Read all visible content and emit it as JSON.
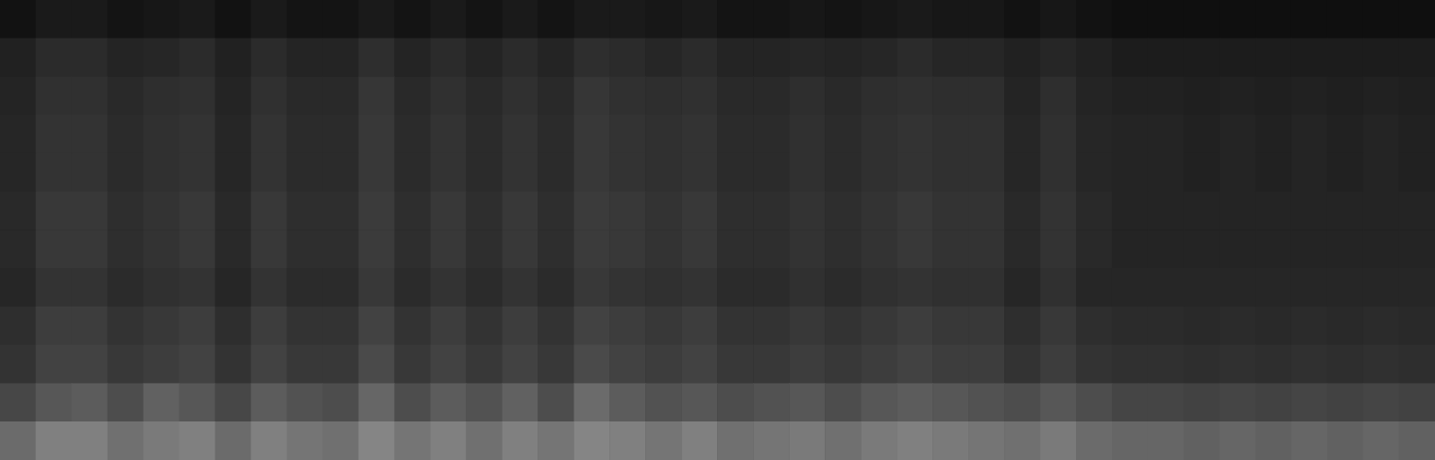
{
  "chart_data": {
    "type": "heatmap",
    "tick_labels": false,
    "grid": false,
    "color_range": [
      0,
      1
    ],
    "cells": [
      [
        0.07,
        0.1,
        0.1,
        0.08,
        0.09,
        0.1,
        0.07,
        0.1,
        0.08,
        0.08,
        0.1,
        0.08,
        0.1,
        0.08,
        0.1,
        0.08,
        0.1,
        0.1,
        0.09,
        0.1,
        0.08,
        0.08,
        0.09,
        0.08,
        0.09,
        0.1,
        0.09,
        0.09,
        0.07,
        0.09,
        0.07,
        0.06,
        0.06,
        0.06,
        0.06,
        0.06,
        0.06,
        0.06,
        0.06,
        0.06
      ],
      [
        0.13,
        0.17,
        0.17,
        0.14,
        0.15,
        0.17,
        0.13,
        0.17,
        0.14,
        0.14,
        0.18,
        0.14,
        0.17,
        0.14,
        0.17,
        0.14,
        0.18,
        0.17,
        0.15,
        0.17,
        0.14,
        0.14,
        0.15,
        0.14,
        0.15,
        0.17,
        0.15,
        0.15,
        0.13,
        0.15,
        0.13,
        0.11,
        0.11,
        0.11,
        0.11,
        0.11,
        0.11,
        0.11,
        0.11,
        0.11
      ],
      [
        0.14,
        0.19,
        0.19,
        0.16,
        0.18,
        0.19,
        0.14,
        0.19,
        0.16,
        0.16,
        0.21,
        0.16,
        0.19,
        0.16,
        0.19,
        0.16,
        0.21,
        0.19,
        0.18,
        0.19,
        0.16,
        0.16,
        0.18,
        0.16,
        0.18,
        0.19,
        0.18,
        0.18,
        0.14,
        0.18,
        0.14,
        0.13,
        0.13,
        0.12,
        0.13,
        0.12,
        0.13,
        0.12,
        0.13,
        0.12
      ],
      [
        0.15,
        0.2,
        0.2,
        0.17,
        0.19,
        0.2,
        0.15,
        0.2,
        0.17,
        0.17,
        0.22,
        0.17,
        0.2,
        0.17,
        0.2,
        0.17,
        0.22,
        0.2,
        0.19,
        0.2,
        0.17,
        0.17,
        0.19,
        0.17,
        0.19,
        0.2,
        0.19,
        0.19,
        0.15,
        0.19,
        0.15,
        0.14,
        0.14,
        0.13,
        0.14,
        0.13,
        0.14,
        0.13,
        0.14,
        0.13
      ],
      [
        0.15,
        0.2,
        0.2,
        0.17,
        0.19,
        0.2,
        0.15,
        0.2,
        0.17,
        0.17,
        0.22,
        0.17,
        0.2,
        0.17,
        0.2,
        0.17,
        0.22,
        0.2,
        0.19,
        0.2,
        0.17,
        0.17,
        0.19,
        0.17,
        0.19,
        0.2,
        0.19,
        0.19,
        0.15,
        0.19,
        0.15,
        0.14,
        0.14,
        0.13,
        0.14,
        0.13,
        0.14,
        0.13,
        0.14,
        0.13
      ],
      [
        0.16,
        0.22,
        0.22,
        0.18,
        0.2,
        0.22,
        0.16,
        0.22,
        0.18,
        0.18,
        0.23,
        0.18,
        0.22,
        0.18,
        0.22,
        0.18,
        0.23,
        0.22,
        0.2,
        0.22,
        0.18,
        0.18,
        0.2,
        0.18,
        0.2,
        0.22,
        0.2,
        0.2,
        0.16,
        0.2,
        0.16,
        0.14,
        0.14,
        0.14,
        0.14,
        0.14,
        0.14,
        0.14,
        0.14,
        0.14
      ],
      [
        0.16,
        0.22,
        0.22,
        0.18,
        0.2,
        0.22,
        0.16,
        0.22,
        0.18,
        0.18,
        0.23,
        0.18,
        0.22,
        0.18,
        0.22,
        0.18,
        0.23,
        0.22,
        0.2,
        0.22,
        0.18,
        0.18,
        0.2,
        0.18,
        0.2,
        0.22,
        0.2,
        0.2,
        0.16,
        0.2,
        0.16,
        0.14,
        0.14,
        0.14,
        0.14,
        0.14,
        0.14,
        0.14,
        0.14,
        0.14
      ],
      [
        0.15,
        0.2,
        0.2,
        0.17,
        0.19,
        0.2,
        0.15,
        0.2,
        0.17,
        0.17,
        0.22,
        0.17,
        0.2,
        0.17,
        0.2,
        0.17,
        0.22,
        0.2,
        0.19,
        0.2,
        0.17,
        0.17,
        0.19,
        0.17,
        0.19,
        0.2,
        0.19,
        0.19,
        0.15,
        0.19,
        0.15,
        0.15,
        0.15,
        0.15,
        0.15,
        0.15,
        0.15,
        0.15,
        0.15,
        0.15
      ],
      [
        0.18,
        0.24,
        0.24,
        0.2,
        0.22,
        0.24,
        0.18,
        0.24,
        0.2,
        0.2,
        0.26,
        0.2,
        0.24,
        0.2,
        0.24,
        0.2,
        0.26,
        0.24,
        0.22,
        0.24,
        0.2,
        0.2,
        0.22,
        0.2,
        0.22,
        0.24,
        0.22,
        0.22,
        0.18,
        0.22,
        0.18,
        0.17,
        0.17,
        0.16,
        0.17,
        0.16,
        0.17,
        0.16,
        0.17,
        0.16
      ],
      [
        0.2,
        0.26,
        0.26,
        0.22,
        0.24,
        0.26,
        0.2,
        0.26,
        0.22,
        0.22,
        0.29,
        0.22,
        0.26,
        0.22,
        0.26,
        0.22,
        0.29,
        0.26,
        0.24,
        0.26,
        0.22,
        0.22,
        0.24,
        0.22,
        0.24,
        0.26,
        0.24,
        0.24,
        0.2,
        0.24,
        0.2,
        0.19,
        0.19,
        0.18,
        0.19,
        0.18,
        0.19,
        0.18,
        0.19,
        0.18
      ],
      [
        0.28,
        0.34,
        0.36,
        0.3,
        0.38,
        0.34,
        0.28,
        0.36,
        0.32,
        0.3,
        0.4,
        0.3,
        0.36,
        0.32,
        0.38,
        0.3,
        0.42,
        0.36,
        0.32,
        0.34,
        0.3,
        0.32,
        0.34,
        0.3,
        0.34,
        0.36,
        0.34,
        0.32,
        0.3,
        0.34,
        0.3,
        0.27,
        0.27,
        0.26,
        0.27,
        0.26,
        0.27,
        0.26,
        0.27,
        0.26
      ],
      [
        0.42,
        0.5,
        0.5,
        0.44,
        0.48,
        0.5,
        0.42,
        0.5,
        0.46,
        0.44,
        0.52,
        0.46,
        0.5,
        0.44,
        0.5,
        0.46,
        0.52,
        0.5,
        0.46,
        0.5,
        0.44,
        0.46,
        0.48,
        0.44,
        0.48,
        0.5,
        0.48,
        0.46,
        0.44,
        0.48,
        0.42,
        0.4,
        0.4,
        0.38,
        0.4,
        0.38,
        0.4,
        0.38,
        0.4,
        0.38
      ]
    ]
  }
}
